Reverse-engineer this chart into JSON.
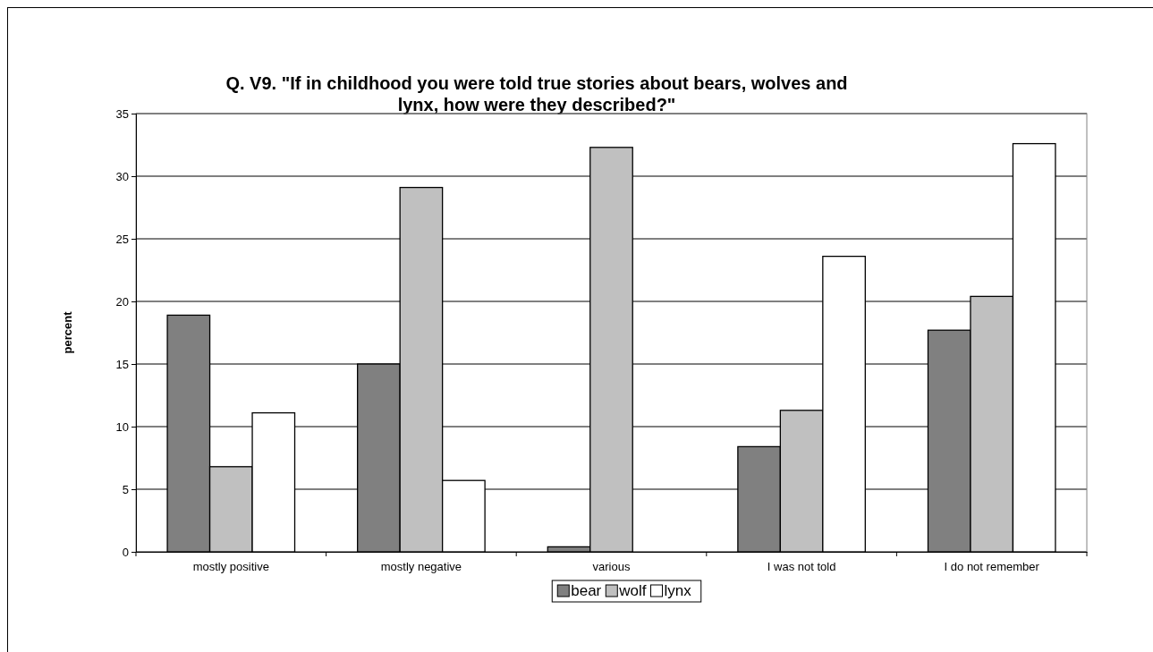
{
  "chart_data": {
    "type": "bar",
    "title": "Q. V9. \"If in childhood you were told true stories about bears, wolves and lynx, how were they described?\"",
    "ylabel": "percent",
    "categories": [
      "mostly positive",
      "mostly negative",
      "various",
      "I was not told",
      "I do not remember"
    ],
    "series": [
      {
        "name": "bear",
        "color": "#808080",
        "values": [
          18.9,
          15.0,
          0.4,
          8.4,
          17.7
        ]
      },
      {
        "name": "wolf",
        "color": "#c0c0c0",
        "values": [
          6.8,
          29.1,
          32.3,
          11.3,
          20.4
        ]
      },
      {
        "name": "lynx",
        "color": "#ffffff",
        "values": [
          11.1,
          5.7,
          0,
          23.6,
          32.6
        ]
      }
    ],
    "ylim": [
      0,
      35
    ],
    "yticks": [
      0,
      5,
      10,
      15,
      20,
      25,
      30,
      35
    ],
    "grid": "y",
    "legend": "bottom"
  }
}
